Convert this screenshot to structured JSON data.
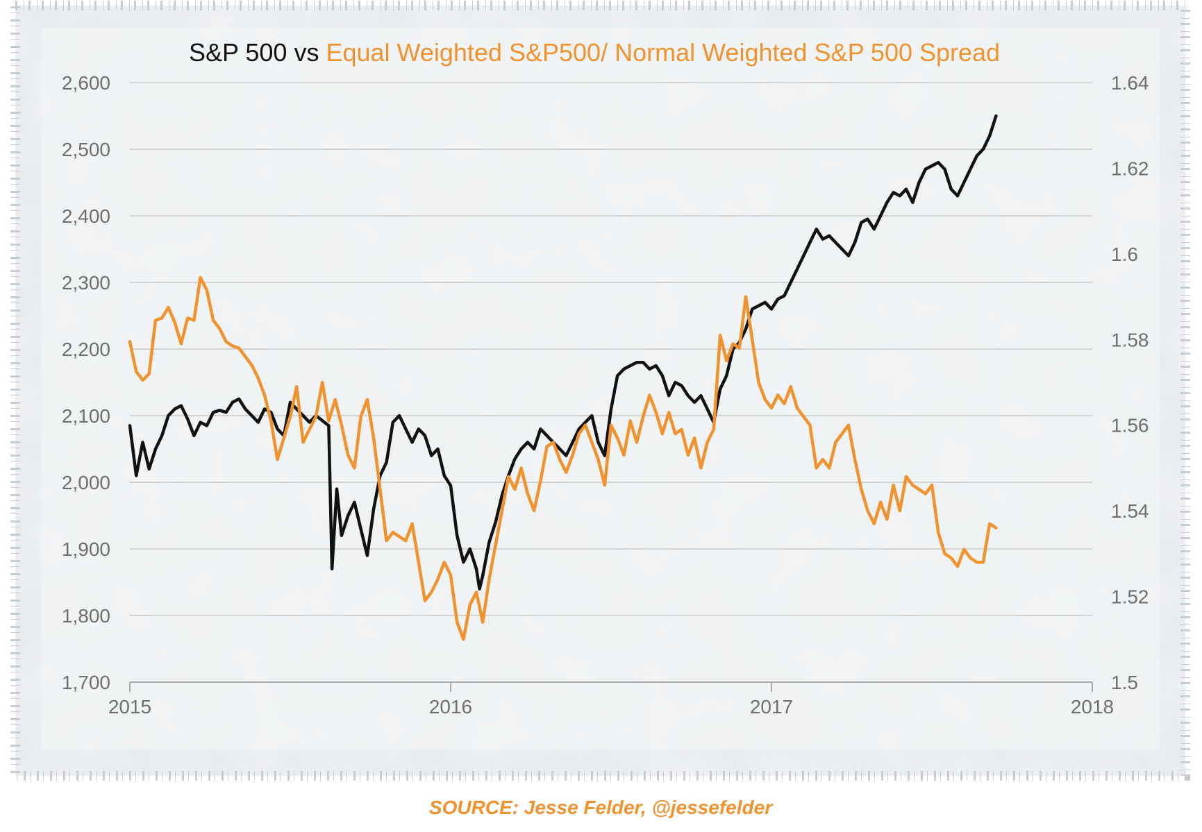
{
  "chart_data": {
    "type": "line",
    "title_parts": [
      "S&P 500 vs ",
      "Equal Weighted S&P500/ Normal Weighted S&P 500 Spread"
    ],
    "source": "SOURCE: Jesse Felder, @jessefelder",
    "x_ticks": [
      "2015",
      "2016",
      "2017",
      "2018"
    ],
    "xlim": [
      2015.0,
      2018.0
    ],
    "y_left": {
      "ticks": [
        "1,700",
        "1,800",
        "1,900",
        "2,000",
        "2,100",
        "2,200",
        "2,300",
        "2,400",
        "2,500",
        "2,600"
      ],
      "ylim": [
        1700,
        2600
      ]
    },
    "y_right": {
      "ticks": [
        "1.5",
        "1.52",
        "1.54",
        "1.56",
        "1.58",
        "1.6",
        "1.62",
        "1.64"
      ],
      "ylim": [
        1.5,
        1.64
      ]
    },
    "grid": "horizontal",
    "series": [
      {
        "color": "#111111",
        "axis": "left",
        "points": [
          [
            2015.0,
            2085
          ],
          [
            2015.02,
            2010
          ],
          [
            2015.04,
            2060
          ],
          [
            2015.06,
            2020
          ],
          [
            2015.08,
            2050
          ],
          [
            2015.1,
            2070
          ],
          [
            2015.12,
            2100
          ],
          [
            2015.14,
            2110
          ],
          [
            2015.16,
            2115
          ],
          [
            2015.18,
            2095
          ],
          [
            2015.2,
            2070
          ],
          [
            2015.22,
            2090
          ],
          [
            2015.24,
            2085
          ],
          [
            2015.26,
            2105
          ],
          [
            2015.28,
            2108
          ],
          [
            2015.3,
            2105
          ],
          [
            2015.32,
            2120
          ],
          [
            2015.34,
            2125
          ],
          [
            2015.36,
            2110
          ],
          [
            2015.38,
            2100
          ],
          [
            2015.4,
            2090
          ],
          [
            2015.42,
            2110
          ],
          [
            2015.44,
            2105
          ],
          [
            2015.46,
            2080
          ],
          [
            2015.48,
            2070
          ],
          [
            2015.5,
            2120
          ],
          [
            2015.52,
            2110
          ],
          [
            2015.54,
            2100
          ],
          [
            2015.56,
            2090
          ],
          [
            2015.58,
            2100
          ],
          [
            2015.62,
            2085
          ],
          [
            2015.63,
            1870
          ],
          [
            2015.645,
            1990
          ],
          [
            2015.66,
            1920
          ],
          [
            2015.68,
            1950
          ],
          [
            2015.7,
            1970
          ],
          [
            2015.72,
            1930
          ],
          [
            2015.74,
            1890
          ],
          [
            2015.76,
            1960
          ],
          [
            2015.78,
            2010
          ],
          [
            2015.8,
            2030
          ],
          [
            2015.82,
            2090
          ],
          [
            2015.84,
            2100
          ],
          [
            2015.86,
            2080
          ],
          [
            2015.88,
            2060
          ],
          [
            2015.9,
            2080
          ],
          [
            2015.92,
            2070
          ],
          [
            2015.94,
            2040
          ],
          [
            2015.96,
            2050
          ],
          [
            2015.98,
            2010
          ],
          [
            2016.0,
            1995
          ],
          [
            2016.02,
            1920
          ],
          [
            2016.04,
            1880
          ],
          [
            2016.06,
            1900
          ],
          [
            2016.08,
            1870
          ],
          [
            2016.09,
            1840
          ],
          [
            2016.1,
            1860
          ],
          [
            2016.12,
            1910
          ],
          [
            2016.14,
            1940
          ],
          [
            2016.16,
            1980
          ],
          [
            2016.18,
            2010
          ],
          [
            2016.2,
            2035
          ],
          [
            2016.22,
            2050
          ],
          [
            2016.24,
            2060
          ],
          [
            2016.26,
            2050
          ],
          [
            2016.28,
            2080
          ],
          [
            2016.3,
            2070
          ],
          [
            2016.32,
            2060
          ],
          [
            2016.34,
            2050
          ],
          [
            2016.36,
            2040
          ],
          [
            2016.38,
            2060
          ],
          [
            2016.4,
            2080
          ],
          [
            2016.42,
            2090
          ],
          [
            2016.44,
            2100
          ],
          [
            2016.46,
            2060
          ],
          [
            2016.48,
            2040
          ],
          [
            2016.5,
            2110
          ],
          [
            2016.52,
            2160
          ],
          [
            2016.54,
            2170
          ],
          [
            2016.56,
            2175
          ],
          [
            2016.58,
            2180
          ],
          [
            2016.6,
            2180
          ],
          [
            2016.62,
            2170
          ],
          [
            2016.64,
            2175
          ],
          [
            2016.66,
            2160
          ],
          [
            2016.68,
            2130
          ],
          [
            2016.7,
            2150
          ],
          [
            2016.72,
            2145
          ],
          [
            2016.74,
            2130
          ],
          [
            2016.76,
            2120
          ],
          [
            2016.78,
            2130
          ],
          [
            2016.8,
            2110
          ],
          [
            2016.82,
            2090
          ],
          [
            2016.84,
            2140
          ],
          [
            2016.86,
            2160
          ],
          [
            2016.88,
            2200
          ],
          [
            2016.9,
            2210
          ],
          [
            2016.92,
            2230
          ],
          [
            2016.94,
            2260
          ],
          [
            2016.96,
            2265
          ],
          [
            2016.98,
            2270
          ],
          [
            2017.0,
            2260
          ],
          [
            2017.02,
            2275
          ],
          [
            2017.04,
            2280
          ],
          [
            2017.06,
            2300
          ],
          [
            2017.08,
            2320
          ],
          [
            2017.1,
            2340
          ],
          [
            2017.12,
            2360
          ],
          [
            2017.14,
            2380
          ],
          [
            2017.16,
            2365
          ],
          [
            2017.18,
            2370
          ],
          [
            2017.2,
            2360
          ],
          [
            2017.22,
            2350
          ],
          [
            2017.24,
            2340
          ],
          [
            2017.26,
            2360
          ],
          [
            2017.28,
            2390
          ],
          [
            2017.3,
            2395
          ],
          [
            2017.32,
            2380
          ],
          [
            2017.34,
            2400
          ],
          [
            2017.36,
            2420
          ],
          [
            2017.38,
            2435
          ],
          [
            2017.4,
            2430
          ],
          [
            2017.42,
            2440
          ],
          [
            2017.44,
            2420
          ],
          [
            2017.46,
            2450
          ],
          [
            2017.48,
            2470
          ],
          [
            2017.5,
            2475
          ],
          [
            2017.52,
            2480
          ],
          [
            2017.54,
            2470
          ],
          [
            2017.56,
            2440
          ],
          [
            2017.58,
            2430
          ],
          [
            2017.6,
            2450
          ],
          [
            2017.62,
            2470
          ],
          [
            2017.64,
            2490
          ],
          [
            2017.66,
            2500
          ],
          [
            2017.68,
            2520
          ],
          [
            2017.7,
            2550
          ]
        ]
      },
      {
        "color": "#f0922e",
        "axis": "right",
        "points": [
          [
            2015.0,
            1.5795
          ],
          [
            2015.02,
            1.5725
          ],
          [
            2015.04,
            1.5705
          ],
          [
            2015.06,
            1.572
          ],
          [
            2015.08,
            1.5845
          ],
          [
            2015.1,
            1.585
          ],
          [
            2015.12,
            1.5875
          ],
          [
            2015.14,
            1.584
          ],
          [
            2015.16,
            1.579
          ],
          [
            2015.18,
            1.585
          ],
          [
            2015.2,
            1.5845
          ],
          [
            2015.22,
            1.5945
          ],
          [
            2015.24,
            1.5915
          ],
          [
            2015.26,
            1.5845
          ],
          [
            2015.28,
            1.5825
          ],
          [
            2015.3,
            1.5795
          ],
          [
            2015.32,
            1.5785
          ],
          [
            2015.34,
            1.578
          ],
          [
            2015.36,
            1.576
          ],
          [
            2015.38,
            1.574
          ],
          [
            2015.4,
            1.571
          ],
          [
            2015.42,
            1.567
          ],
          [
            2015.44,
            1.561
          ],
          [
            2015.46,
            1.552
          ],
          [
            2015.48,
            1.557
          ],
          [
            2015.5,
            1.562
          ],
          [
            2015.52,
            1.569
          ],
          [
            2015.54,
            1.556
          ],
          [
            2015.56,
            1.559
          ],
          [
            2015.58,
            1.562
          ],
          [
            2015.6,
            1.57
          ],
          [
            2015.62,
            1.561
          ],
          [
            2015.64,
            1.566
          ],
          [
            2015.66,
            1.56
          ],
          [
            2015.68,
            1.553
          ],
          [
            2015.7,
            1.55
          ],
          [
            2015.72,
            1.562
          ],
          [
            2015.74,
            1.566
          ],
          [
            2015.76,
            1.557
          ],
          [
            2015.78,
            1.545
          ],
          [
            2015.8,
            1.533
          ],
          [
            2015.82,
            1.535
          ],
          [
            2015.84,
            1.534
          ],
          [
            2015.86,
            1.533
          ],
          [
            2015.88,
            1.537
          ],
          [
            2015.9,
            1.528
          ],
          [
            2015.92,
            1.519
          ],
          [
            2015.94,
            1.521
          ],
          [
            2015.96,
            1.524
          ],
          [
            2015.98,
            1.528
          ],
          [
            2016.0,
            1.525
          ],
          [
            2016.02,
            1.514
          ],
          [
            2016.04,
            1.51
          ],
          [
            2016.06,
            1.518
          ],
          [
            2016.08,
            1.521
          ],
          [
            2016.1,
            1.514
          ],
          [
            2016.12,
            1.524
          ],
          [
            2016.14,
            1.532
          ],
          [
            2016.16,
            1.54
          ],
          [
            2016.18,
            1.548
          ],
          [
            2016.2,
            1.545
          ],
          [
            2016.22,
            1.55
          ],
          [
            2016.24,
            1.544
          ],
          [
            2016.26,
            1.54
          ],
          [
            2016.28,
            1.547
          ],
          [
            2016.3,
            1.555
          ],
          [
            2016.32,
            1.556
          ],
          [
            2016.34,
            1.552
          ],
          [
            2016.36,
            1.549
          ],
          [
            2016.38,
            1.553
          ],
          [
            2016.4,
            1.558
          ],
          [
            2016.42,
            1.56
          ],
          [
            2016.44,
            1.556
          ],
          [
            2016.46,
            1.552
          ],
          [
            2016.48,
            1.546
          ],
          [
            2016.5,
            1.56
          ],
          [
            2016.52,
            1.557
          ],
          [
            2016.54,
            1.553
          ],
          [
            2016.56,
            1.561
          ],
          [
            2016.58,
            1.556
          ],
          [
            2016.6,
            1.562
          ],
          [
            2016.62,
            1.567
          ],
          [
            2016.64,
            1.563
          ],
          [
            2016.66,
            1.558
          ],
          [
            2016.68,
            1.563
          ],
          [
            2016.7,
            1.558
          ],
          [
            2016.72,
            1.559
          ],
          [
            2016.74,
            1.553
          ],
          [
            2016.76,
            1.557
          ],
          [
            2016.78,
            1.55
          ],
          [
            2016.8,
            1.556
          ],
          [
            2016.82,
            1.559
          ],
          [
            2016.84,
            1.581
          ],
          [
            2016.86,
            1.575
          ],
          [
            2016.88,
            1.579
          ],
          [
            2016.9,
            1.578
          ],
          [
            2016.92,
            1.59
          ],
          [
            2016.94,
            1.58
          ],
          [
            2016.96,
            1.57
          ],
          [
            2016.98,
            1.566
          ],
          [
            2017.0,
            1.564
          ],
          [
            2017.02,
            1.567
          ],
          [
            2017.04,
            1.565
          ],
          [
            2017.06,
            1.569
          ],
          [
            2017.08,
            1.564
          ],
          [
            2017.1,
            1.562
          ],
          [
            2017.12,
            1.56
          ],
          [
            2017.14,
            1.55
          ],
          [
            2017.16,
            1.552
          ],
          [
            2017.18,
            1.55
          ],
          [
            2017.2,
            1.556
          ],
          [
            2017.22,
            1.558
          ],
          [
            2017.24,
            1.56
          ],
          [
            2017.26,
            1.552
          ],
          [
            2017.28,
            1.545
          ],
          [
            2017.3,
            1.54
          ],
          [
            2017.32,
            1.537
          ],
          [
            2017.34,
            1.542
          ],
          [
            2017.36,
            1.538
          ],
          [
            2017.38,
            1.546
          ],
          [
            2017.4,
            1.54
          ],
          [
            2017.42,
            1.548
          ],
          [
            2017.44,
            1.546
          ],
          [
            2017.46,
            1.545
          ],
          [
            2017.48,
            1.544
          ],
          [
            2017.5,
            1.546
          ],
          [
            2017.52,
            1.535
          ],
          [
            2017.54,
            1.53
          ],
          [
            2017.56,
            1.529
          ],
          [
            2017.58,
            1.527
          ],
          [
            2017.6,
            1.531
          ],
          [
            2017.62,
            1.529
          ],
          [
            2017.64,
            1.528
          ],
          [
            2017.66,
            1.528
          ],
          [
            2017.68,
            1.537
          ],
          [
            2017.7,
            1.536
          ]
        ]
      }
    ]
  },
  "colors": {
    "black": "#111111",
    "orange": "#f0922e",
    "grid": "#c7c7c7",
    "tick": "#6e6e6e"
  }
}
